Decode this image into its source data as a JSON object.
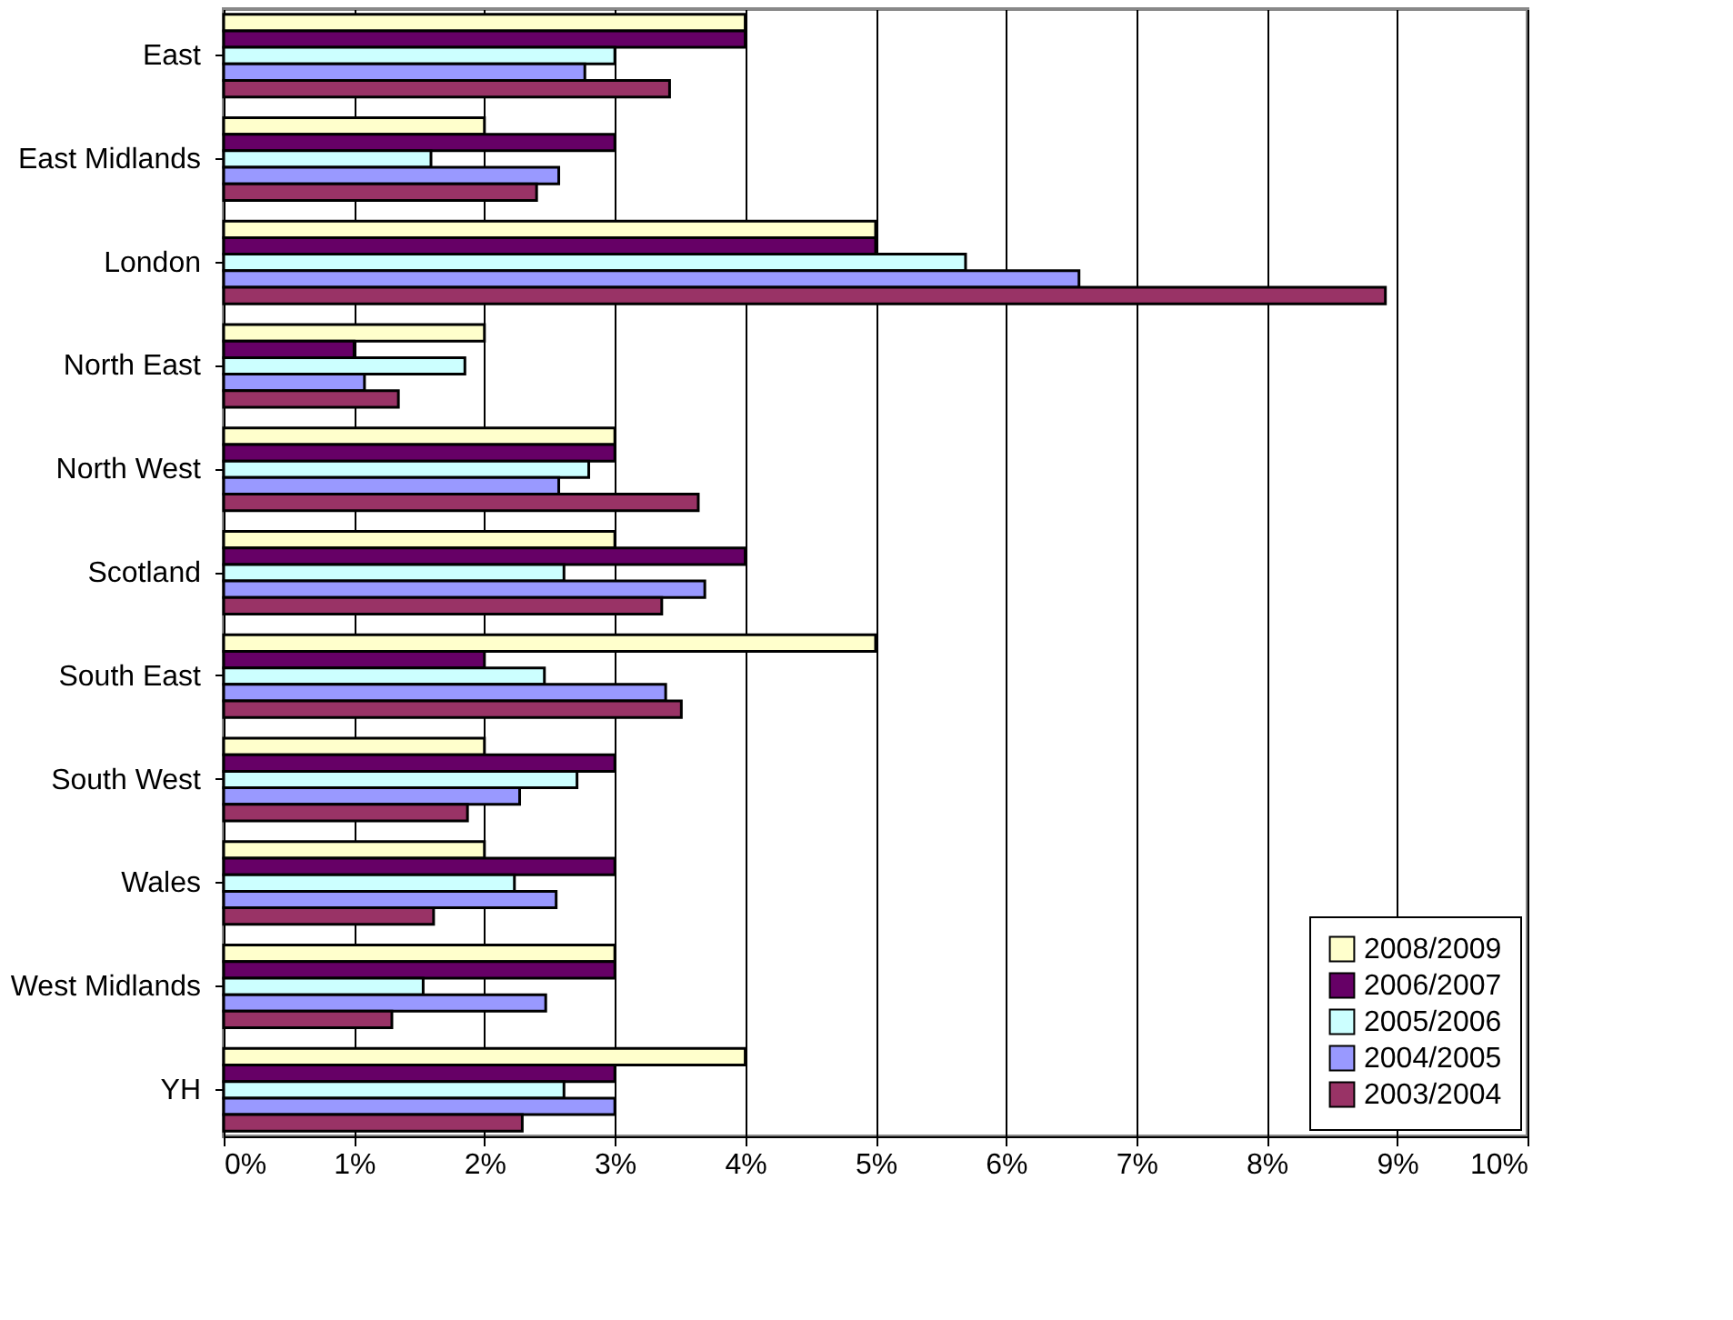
{
  "chart_data": {
    "type": "bar",
    "orientation": "horizontal",
    "categories": [
      "East",
      "East Midlands",
      "London",
      "North East",
      "North West",
      "Scotland",
      "South East",
      "South West",
      "Wales",
      "West Midlands",
      "YH"
    ],
    "series": [
      {
        "name": "2008/2009",
        "color": "#ffffcc",
        "values": [
          4,
          2,
          5,
          2,
          3,
          3,
          5,
          2,
          2,
          3,
          4
        ]
      },
      {
        "name": "2006/2007",
        "color": "#660066",
        "values": [
          4,
          3,
          5,
          1,
          3,
          4,
          2,
          3,
          3,
          3,
          3
        ]
      },
      {
        "name": "2005/2006",
        "color": "#ccffff",
        "values": [
          3,
          1.59,
          5.69,
          1.85,
          2.8,
          2.61,
          2.46,
          2.71,
          2.23,
          1.53,
          2.61
        ]
      },
      {
        "name": "2004/2005",
        "color": "#9999ff",
        "values": [
          2.77,
          2.57,
          6.56,
          1.08,
          2.57,
          3.69,
          3.39,
          2.27,
          2.55,
          2.47,
          3
        ]
      },
      {
        "name": "2003/2004",
        "color": "#993366",
        "values": [
          3.42,
          2.4,
          8.91,
          1.34,
          3.64,
          3.36,
          3.51,
          1.87,
          1.61,
          1.29,
          2.29
        ]
      }
    ],
    "xlim": [
      0,
      10
    ],
    "xticks": [
      {
        "value": 0,
        "label": "0%"
      },
      {
        "value": 1,
        "label": "1%"
      },
      {
        "value": 2,
        "label": "2%"
      },
      {
        "value": 3,
        "label": "3%"
      },
      {
        "value": 4,
        "label": "4%"
      },
      {
        "value": 5,
        "label": "5%"
      },
      {
        "value": 6,
        "label": "6%"
      },
      {
        "value": 7,
        "label": "7%"
      },
      {
        "value": 8,
        "label": "8%"
      },
      {
        "value": 9,
        "label": "9%"
      },
      {
        "value": 10,
        "label": "10%"
      }
    ],
    "grid": "x",
    "legend": "bottom right"
  }
}
